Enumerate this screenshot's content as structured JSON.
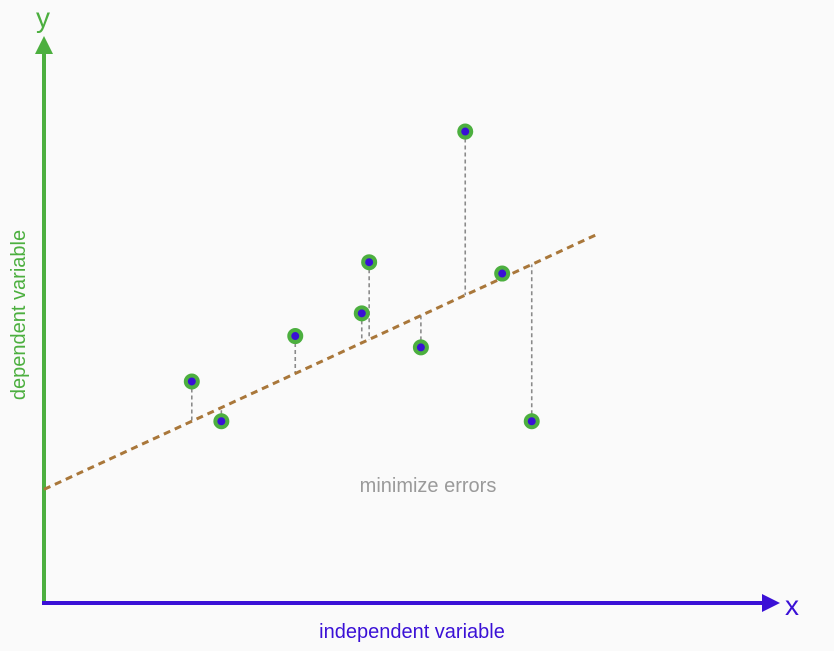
{
  "diagram": {
    "y_axis_letter": "y",
    "x_axis_letter": "x",
    "y_axis_label": "dependent variable",
    "x_axis_label": "independent variable",
    "annotation": "minimize errors",
    "colors": {
      "y_axis": "#4caf3f",
      "x_axis": "#3a10d6",
      "regression_line": "#a9773a",
      "residual_line": "#8a8a8a",
      "point_ring": "#4caf3f",
      "point_core": "#3a10d6",
      "annotation_text": "#9a9a9a",
      "background": "#fafafa"
    }
  },
  "chart_data": {
    "type": "scatter",
    "xlim": [
      0,
      100
    ],
    "ylim": [
      0,
      100
    ],
    "points": [
      {
        "x": 20,
        "y": 39
      },
      {
        "x": 24,
        "y": 32
      },
      {
        "x": 34,
        "y": 47
      },
      {
        "x": 43,
        "y": 51
      },
      {
        "x": 44,
        "y": 60
      },
      {
        "x": 51,
        "y": 45
      },
      {
        "x": 57,
        "y": 83
      },
      {
        "x": 62,
        "y": 58
      },
      {
        "x": 66,
        "y": 32
      }
    ],
    "regression_line": {
      "intercept": 20,
      "slope": 0.6,
      "x_end": 75
    },
    "residuals_shown": true
  }
}
